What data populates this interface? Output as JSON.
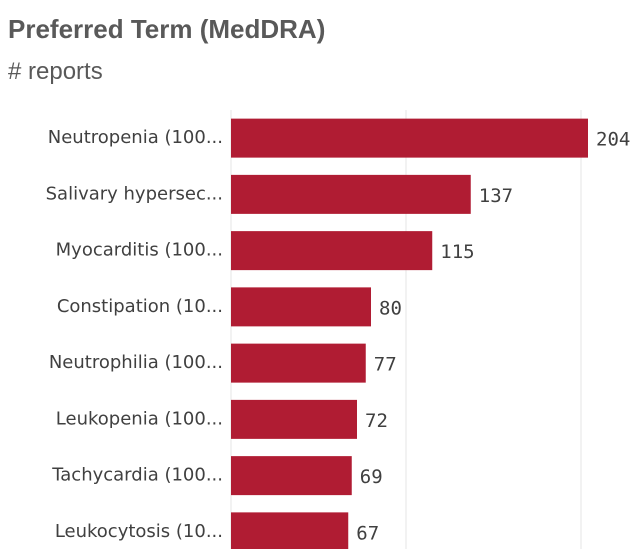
{
  "chart_data": {
    "type": "bar",
    "orientation": "horizontal",
    "title": "Preferred Term (MedDRA)",
    "subtitle": "# reports",
    "categories": [
      "Neutropenia (100...",
      "Salivary hypersec...",
      "Myocarditis (100...",
      "Constipation (10...",
      "Neutrophilia (100...",
      "Leukopenia (100...",
      "Tachycardia (100...",
      "Leukocytosis (10..."
    ],
    "values": [
      204,
      137,
      115,
      80,
      77,
      72,
      69,
      67
    ],
    "color": "#b01c33",
    "xlim": [
      0,
      210
    ],
    "xticks": [
      0,
      100,
      200
    ],
    "grid": true
  }
}
